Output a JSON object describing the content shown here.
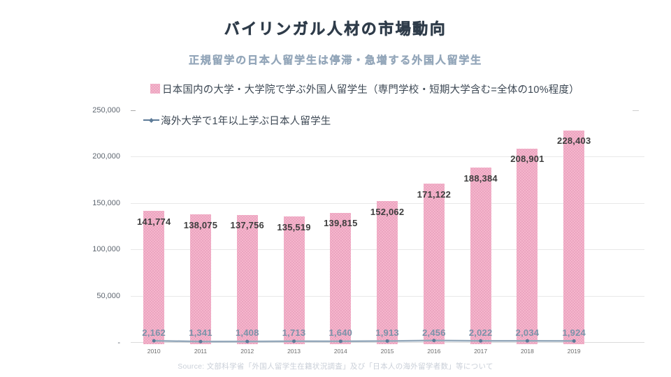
{
  "title": "バイリンガル人材の市場動向",
  "subtitle": "正規留学の日本人留学生は停滞・急増する外国人留学生",
  "source": "Source: 文部科学省「外国人留学生在籍状況調査」及び「日本人の海外留学者数」等について",
  "colors": {
    "bar_fill": "#f5b6cc",
    "bar_pattern_dot": "#e89fbd",
    "line": "#95a9bb",
    "line_marker": "#5d7b98",
    "bar_label": "#3e3e3e",
    "line_label": "#7b93a9",
    "title_text": "#2f3c4a",
    "subtitle_text": "#94a7ba",
    "gridline": "#e8e8e8",
    "axis_line": "#dbdbdb"
  },
  "legend": [
    {
      "label": "日本国内の大学・大学院で学ぶ外国人留学生（専門学校・短期大学含む=全体の10%程度）",
      "marker": "bar-swatch"
    },
    {
      "label": "海外大学で1年以上学ぶ日本人留学生",
      "marker": "line-marker"
    }
  ],
  "chart_data": {
    "type": "bar",
    "categories": [
      "2010",
      "2011",
      "2012",
      "2013",
      "2014",
      "2015",
      "2016",
      "2017",
      "2018",
      "2019"
    ],
    "series": [
      {
        "name": "日本国内の大学・大学院で学ぶ外国人留学生（専門学校・短期大学含む=全体の10%程度）",
        "type": "bar",
        "values": [
          141774,
          138075,
          137756,
          135519,
          139815,
          152062,
          171122,
          188384,
          208901,
          228403
        ]
      },
      {
        "name": "海外大学で1年以上学ぶ日本人留学生",
        "type": "line",
        "values": [
          2162,
          1341,
          1408,
          1713,
          1640,
          1913,
          2456,
          2022,
          2034,
          1924
        ]
      }
    ],
    "ylim": [
      0,
      250000
    ],
    "y_ticks": [
      250000,
      200000,
      150000,
      100000,
      50000,
      0
    ],
    "y_tick_labels": [
      "250,000",
      "200,000",
      "150,000",
      "100,000",
      "50,000",
      "-"
    ],
    "grid": "horizontal",
    "legend_position": "top-inside",
    "data_labels": true
  }
}
